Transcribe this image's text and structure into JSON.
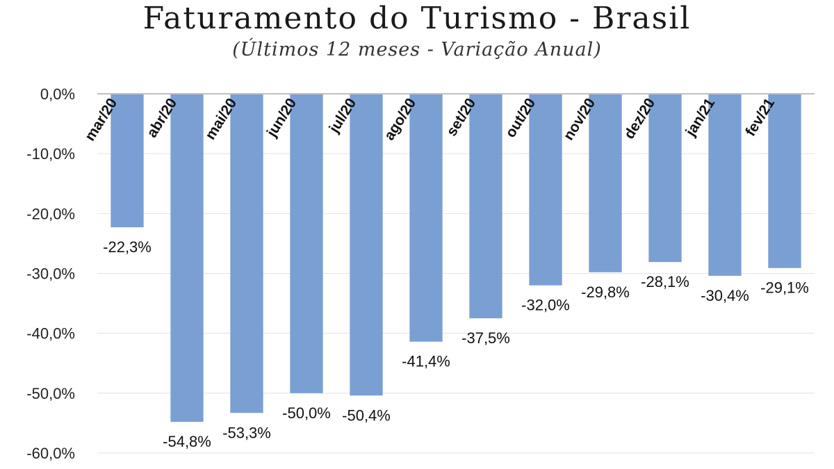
{
  "chart_data": {
    "type": "bar",
    "title": "Faturamento do Turismo - Brasil",
    "subtitle": "(Últimos 12 meses - Variação Anual)",
    "categories": [
      "mar/20",
      "abr/20",
      "mai/20",
      "jun/20",
      "jul/20",
      "ago/20",
      "set/20",
      "out/20",
      "nov/20",
      "dez/20",
      "jan/21",
      "fev/21"
    ],
    "values": [
      -22.3,
      -54.8,
      -53.3,
      -50.0,
      -50.4,
      -41.4,
      -37.5,
      -32.0,
      -29.8,
      -28.1,
      -30.4,
      -29.1
    ],
    "data_labels": [
      "-22,3%",
      "-54,8%",
      "-53,3%",
      "-50,0%",
      "-50,4%",
      "-41,4%",
      "-37,5%",
      "-32,0%",
      "-29,8%",
      "-28,1%",
      "-30,4%",
      "-29,1%"
    ],
    "y_ticks": [
      0,
      -10,
      -20,
      -30,
      -40,
      -50,
      -60
    ],
    "y_tick_labels": [
      "0,0%",
      "-10,0%",
      "-20,0%",
      "-30,0%",
      "-40,0%",
      "-50,0%",
      "-60,0%"
    ],
    "ylim": [
      -60,
      0
    ],
    "grid": true,
    "bar_color": "#7a9fd3",
    "grid_color": "#e3e3e3",
    "axis_color": "#c0c0c0"
  }
}
